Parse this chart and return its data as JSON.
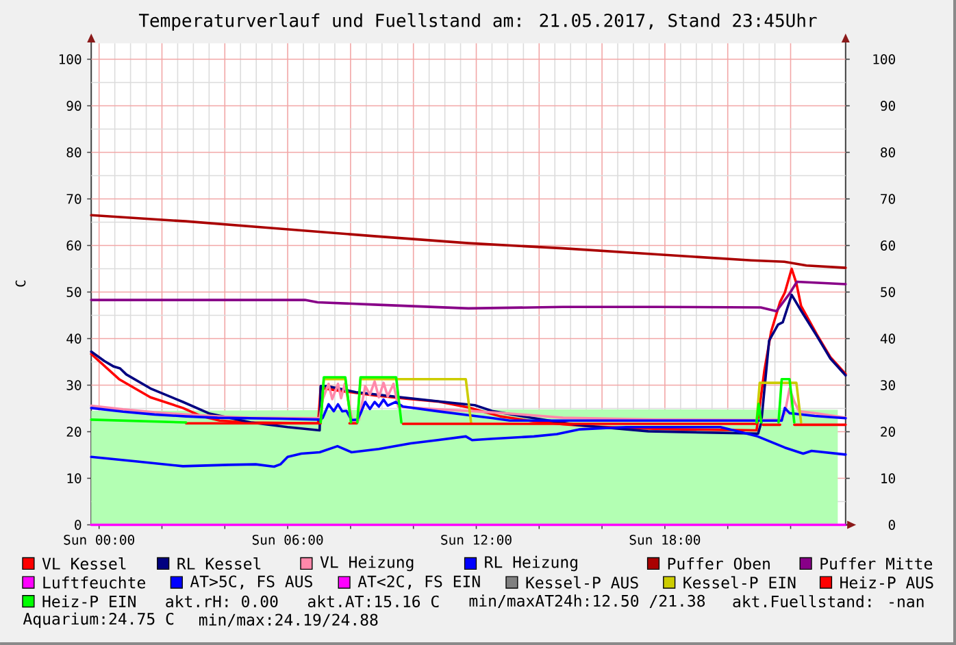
{
  "chart_data": {
    "type": "line",
    "title": "Temperaturverlauf und Fuellstand am: 21.05.2017, Stand 23:45Uhr",
    "ylabel": "C",
    "xlim": [
      "2017-05-20T23:45",
      "2017-05-21T23:45"
    ],
    "xticks": [
      {
        "value": "2017-05-21T00:00",
        "label": "Sun 00:00"
      },
      {
        "value": "2017-05-21T02:00",
        "label": null
      },
      {
        "value": "2017-05-21T04:00",
        "label": null
      },
      {
        "value": "2017-05-21T06:00",
        "label": "Sun 06:00"
      },
      {
        "value": "2017-05-21T08:00",
        "label": null
      },
      {
        "value": "2017-05-21T10:00",
        "label": null
      },
      {
        "value": "2017-05-21T12:00",
        "label": "Sun 12:00"
      },
      {
        "value": "2017-05-21T14:00",
        "label": null
      },
      {
        "value": "2017-05-21T16:00",
        "label": null
      },
      {
        "value": "2017-05-21T18:00",
        "label": "Sun 18:00"
      },
      {
        "value": "2017-05-21T20:00",
        "label": null
      },
      {
        "value": "2017-05-21T22:00",
        "label": null
      }
    ],
    "ylim": [
      0,
      103.4
    ],
    "yticks": [
      0,
      10,
      20,
      30,
      40,
      50,
      60,
      70,
      80,
      90,
      100
    ],
    "y2lim": [
      0,
      103.4
    ],
    "y2ticks": [
      0,
      10,
      20,
      30,
      40,
      50,
      60,
      70,
      80,
      90,
      100
    ],
    "grid": true,
    "legend": "bottom",
    "marker": "none",
    "series": [
      {
        "type": "area",
        "color": "#b3ffb3",
        "x": [
          "2017-05-20T23:45",
          "2017-05-21T05:45",
          "2017-05-21T11:45",
          "2017-05-21T17:45",
          "2017-05-21T23:30"
        ],
        "values": [
          24.5,
          24.6,
          24.8,
          24.8,
          24.7
        ]
      },
      {
        "name": "VL Kessel",
        "color": "#ff0000",
        "x": [
          "2017-05-20T23:45",
          "2017-05-21T00:38",
          "2017-05-21T01:38",
          "2017-05-21T02:40",
          "2017-05-21T03:14",
          "2017-05-21T03:50",
          "2017-05-21T04:46",
          "2017-05-21T06:58",
          "2017-05-21T07:03",
          "2017-05-21T07:46",
          "2017-05-21T08:46",
          "2017-05-21T09:46",
          "2017-05-21T10:46",
          "2017-05-21T11:46",
          "2017-05-21T12:46",
          "2017-05-21T13:46",
          "2017-05-21T14:46",
          "2017-05-21T15:46",
          "2017-05-21T17:46",
          "2017-05-21T19:46",
          "2017-05-21T20:55",
          "2017-05-21T21:10",
          "2017-05-21T21:23",
          "2017-05-21T21:40",
          "2017-05-21T21:49",
          "2017-05-21T22:02",
          "2017-05-21T22:11",
          "2017-05-21T22:20",
          "2017-05-21T22:50",
          "2017-05-21T23:16",
          "2017-05-21T23:45"
        ],
        "values": [
          36.7,
          31.3,
          27.4,
          25.1,
          23.4,
          22.4,
          22.0,
          21.8,
          29.4,
          28.7,
          27.8,
          27.1,
          26.5,
          25.2,
          23.3,
          22.3,
          21.6,
          21.1,
          20.6,
          20.4,
          20.3,
          33.2,
          41.6,
          47.9,
          49.9,
          55.0,
          51.9,
          47.0,
          40.9,
          36.0,
          32.4
        ]
      },
      {
        "name": "RL Kessel",
        "color": "#000080",
        "x": [
          "2017-05-20T23:45",
          "2017-05-21T00:10",
          "2017-05-21T00:28",
          "2017-05-21T00:40",
          "2017-05-21T00:52",
          "2017-05-21T01:38",
          "2017-05-21T02:40",
          "2017-05-21T03:31",
          "2017-05-21T04:50",
          "2017-05-21T06:00",
          "2017-05-21T07:01",
          "2017-05-21T07:03",
          "2017-05-21T07:16",
          "2017-05-21T08:10",
          "2017-05-21T09:28",
          "2017-05-21T11:22",
          "2017-05-21T11:57",
          "2017-05-21T12:32",
          "2017-05-21T13:50",
          "2017-05-21T15:16",
          "2017-05-21T17:28",
          "2017-05-21T20:58",
          "2017-05-21T21:04",
          "2017-05-21T21:19",
          "2017-05-21T21:36",
          "2017-05-21T21:45",
          "2017-05-21T22:02",
          "2017-05-21T22:20",
          "2017-05-21T22:50",
          "2017-05-21T23:16",
          "2017-05-21T23:45"
        ],
        "values": [
          37.2,
          35.2,
          34.0,
          33.6,
          32.3,
          29.3,
          26.4,
          23.9,
          22.0,
          21.0,
          20.3,
          29.8,
          29.8,
          28.5,
          27.5,
          26.1,
          25.7,
          24.4,
          22.9,
          21.4,
          20.1,
          19.6,
          22.0,
          39.6,
          43.0,
          43.5,
          49.4,
          46.0,
          40.6,
          35.7,
          32.1
        ]
      },
      {
        "name": "VL Heizung",
        "color": "#ff88aa",
        "x": [
          "2017-05-20T23:45",
          "2017-05-21T00:46",
          "2017-05-21T01:46",
          "2017-05-21T02:46",
          "2017-05-21T03:46",
          "2017-05-21T04:46",
          "2017-05-21T07:01",
          "2017-05-21T07:07",
          "2017-05-21T07:18",
          "2017-05-21T07:25",
          "2017-05-21T07:36",
          "2017-05-21T07:42",
          "2017-05-21T07:49",
          "2017-05-21T08:04",
          "2017-05-21T08:16",
          "2017-05-21T08:28",
          "2017-05-21T08:37",
          "2017-05-21T08:46",
          "2017-05-21T08:54",
          "2017-05-21T09:03",
          "2017-05-21T09:11",
          "2017-05-21T09:22",
          "2017-05-21T09:31",
          "2017-05-21T10:46",
          "2017-05-21T11:58",
          "2017-05-21T13:04",
          "2017-05-21T14:46",
          "2017-05-21T17:46",
          "2017-05-21T20:58",
          "2017-05-21T21:40",
          "2017-05-21T21:49",
          "2017-05-21T21:58",
          "2017-05-21T22:07",
          "2017-05-21T22:16",
          "2017-05-21T22:46",
          "2017-05-21T23:45"
        ],
        "values": [
          25.6,
          24.8,
          24.2,
          23.7,
          23.3,
          23.0,
          22.9,
          27.0,
          30.3,
          27.0,
          30.3,
          27.2,
          30.3,
          22.0,
          22.5,
          29.8,
          28.0,
          30.8,
          27.4,
          30.5,
          27.6,
          30.3,
          25.4,
          24.8,
          24.4,
          23.9,
          23.0,
          22.6,
          22.5,
          22.6,
          24.0,
          29.3,
          26.5,
          24.4,
          24.0,
          23.0
        ]
      },
      {
        "name": "RL Heizung",
        "color": "#0000ff",
        "x": [
          "2017-05-20T23:45",
          "2017-05-21T00:46",
          "2017-05-21T01:46",
          "2017-05-21T02:46",
          "2017-05-21T03:46",
          "2017-05-21T05:46",
          "2017-05-21T07:03",
          "2017-05-21T07:07",
          "2017-05-21T07:18",
          "2017-05-21T07:28",
          "2017-05-21T07:36",
          "2017-05-21T07:44",
          "2017-05-21T07:52",
          "2017-05-21T08:02",
          "2017-05-21T08:13",
          "2017-05-21T08:19",
          "2017-05-21T08:28",
          "2017-05-21T08:37",
          "2017-05-21T08:46",
          "2017-05-21T08:54",
          "2017-05-21T09:03",
          "2017-05-21T09:11",
          "2017-05-21T09:26",
          "2017-05-21T09:40",
          "2017-05-21T10:46",
          "2017-05-21T11:57",
          "2017-05-21T12:32",
          "2017-05-21T13:04",
          "2017-05-21T20:58",
          "2017-05-21T21:43",
          "2017-05-21T21:49",
          "2017-05-21T21:58",
          "2017-05-21T22:46",
          "2017-05-21T23:45"
        ],
        "values": [
          25.1,
          24.3,
          23.7,
          23.3,
          23.0,
          22.8,
          22.6,
          23.0,
          25.9,
          24.4,
          25.9,
          24.4,
          24.5,
          22.5,
          22.6,
          23.9,
          26.4,
          24.9,
          26.4,
          25.4,
          26.9,
          25.6,
          26.4,
          25.4,
          24.4,
          23.4,
          22.9,
          22.4,
          22.4,
          22.4,
          25.1,
          24.0,
          23.4,
          22.9
        ]
      },
      {
        "name": "Puffer Oben",
        "color": "#aa0000",
        "x": [
          "2017-05-20T23:45",
          "2017-05-21T02:45",
          "2017-05-21T05:45",
          "2017-05-21T08:45",
          "2017-05-21T11:45",
          "2017-05-21T14:45",
          "2017-05-21T17:45",
          "2017-05-21T20:45",
          "2017-05-21T21:48",
          "2017-05-21T22:30",
          "2017-05-21T23:45"
        ],
        "values": [
          66.5,
          65.2,
          63.6,
          62.0,
          60.5,
          59.4,
          58.1,
          56.8,
          56.5,
          55.7,
          55.2
        ]
      },
      {
        "name": "Puffer Mitte",
        "color": "#880088",
        "x": [
          "2017-05-20T23:45",
          "2017-05-21T06:33",
          "2017-05-21T06:57",
          "2017-05-21T08:45",
          "2017-05-21T11:45",
          "2017-05-21T14:45",
          "2017-05-21T17:45",
          "2017-05-21T21:03",
          "2017-05-21T21:33",
          "2017-05-21T21:57",
          "2017-05-21T22:12",
          "2017-05-21T23:45"
        ],
        "values": [
          48.3,
          48.3,
          47.8,
          47.3,
          46.5,
          46.8,
          46.8,
          46.7,
          45.9,
          49.5,
          52.2,
          51.7
        ]
      },
      {
        "name": "Luftfeuchte",
        "color": "#ff00ff",
        "x": [
          "2017-05-20T23:45",
          "2017-05-21T23:45"
        ],
        "values": [
          0,
          0
        ]
      },
      {
        "name": "AT>5C, FS AUS",
        "color": "#0000ff",
        "x": [
          "2017-05-20T23:45",
          "2017-05-21T01:13",
          "2017-05-21T02:40",
          "2017-05-21T04:07",
          "2017-05-21T04:59",
          "2017-05-21T05:34",
          "2017-05-21T05:46",
          "2017-05-21T06:00",
          "2017-05-21T06:26",
          "2017-05-21T07:01",
          "2017-05-21T07:35",
          "2017-05-21T08:02",
          "2017-05-21T08:54",
          "2017-05-21T09:55",
          "2017-05-21T10:46",
          "2017-05-21T11:40",
          "2017-05-21T11:52",
          "2017-05-21T12:32",
          "2017-05-21T13:50",
          "2017-05-21T14:34",
          "2017-05-21T15:16",
          "2017-05-21T16:46",
          "2017-05-21T18:10",
          "2017-05-21T19:46",
          "2017-05-21T20:22",
          "2017-05-21T20:57",
          "2017-05-21T21:49",
          "2017-05-21T22:24",
          "2017-05-21T22:40",
          "2017-05-21T23:45"
        ],
        "values": [
          14.6,
          13.6,
          12.6,
          12.9,
          13.0,
          12.5,
          13.0,
          14.6,
          15.3,
          15.6,
          16.9,
          15.6,
          16.3,
          17.5,
          18.2,
          19.0,
          18.2,
          18.5,
          19.0,
          19.5,
          20.5,
          21.0,
          21.0,
          21.0,
          20.0,
          19.0,
          16.6,
          15.3,
          15.9,
          15.1
        ]
      },
      {
        "name": "AT<2C, FS EIN",
        "color": "#ff00ff"
      },
      {
        "name": "Kessel-P AUS",
        "color": "#808080"
      },
      {
        "name": "Kessel-P EIN",
        "color": "#cccc00",
        "x": [
          "2017-05-21T07:03",
          "2017-05-21T07:09",
          "2017-05-21T07:50",
          "2017-05-21T08:01",
          "2017-05-21T08:02",
          "2017-05-21T08:13",
          "2017-05-21T08:19",
          "2017-05-21T11:40",
          "2017-05-21T11:50",
          "2017-05-21T11:51",
          "2017-05-21T20:55",
          "2017-05-21T21:01",
          "2017-05-21T22:11",
          "2017-05-21T22:20"
        ],
        "values": [
          22.0,
          31.3,
          31.3,
          22.0,
          null,
          22.0,
          31.3,
          31.3,
          22.0,
          null,
          22.0,
          30.5,
          30.5,
          22.0
        ]
      },
      {
        "name": "Heiz-P AUS",
        "color": "#ff0000",
        "x": [
          "2017-05-21T02:46",
          "2017-05-21T07:03",
          "2017-05-21T07:04",
          "2017-05-21T07:58",
          "2017-05-21T08:12",
          "2017-05-21T08:13",
          "2017-05-21T09:40",
          "2017-05-21T20:55",
          "2017-05-21T20:56",
          "2017-05-21T21:07",
          "2017-05-21T21:40",
          "2017-05-21T21:41",
          "2017-05-21T22:07",
          "2017-05-21T23:45"
        ],
        "values": [
          21.8,
          21.8,
          null,
          21.8,
          21.8,
          null,
          21.7,
          21.7,
          null,
          21.5,
          21.5,
          null,
          21.5,
          21.5
        ]
      },
      {
        "name": "Heiz-P EIN",
        "color": "#00ff00",
        "x": [
          "2017-05-20T23:45",
          "2017-05-21T02:46",
          "2017-05-21T02:47",
          "2017-05-21T07:03",
          "2017-05-21T07:09",
          "2017-05-21T07:50",
          "2017-05-21T08:01",
          "2017-05-21T08:02",
          "2017-05-21T08:13",
          "2017-05-21T08:19",
          "2017-05-21T09:27",
          "2017-05-21T09:37",
          "2017-05-21T09:38",
          "2017-05-21T20:55",
          "2017-05-21T20:59",
          "2017-05-21T21:04",
          "2017-05-21T21:05",
          "2017-05-21T21:37",
          "2017-05-21T21:43",
          "2017-05-21T21:58",
          "2017-05-21T22:07"
        ],
        "values": [
          22.6,
          22.0,
          null,
          22.0,
          31.7,
          31.7,
          22.0,
          null,
          22.0,
          31.7,
          31.7,
          22.0,
          null,
          22.0,
          26.0,
          22.0,
          null,
          22.0,
          31.3,
          31.3,
          22.0
        ]
      }
    ],
    "annotations": [
      "akt.rH: 0.00",
      "akt.AT:15.16 C",
      "min/maxAT24h:12.50 /21.38",
      "akt.Fuellstand: -nan",
      "Aquarium:24.75 C",
      "min/max:24.19/24.88"
    ]
  }
}
